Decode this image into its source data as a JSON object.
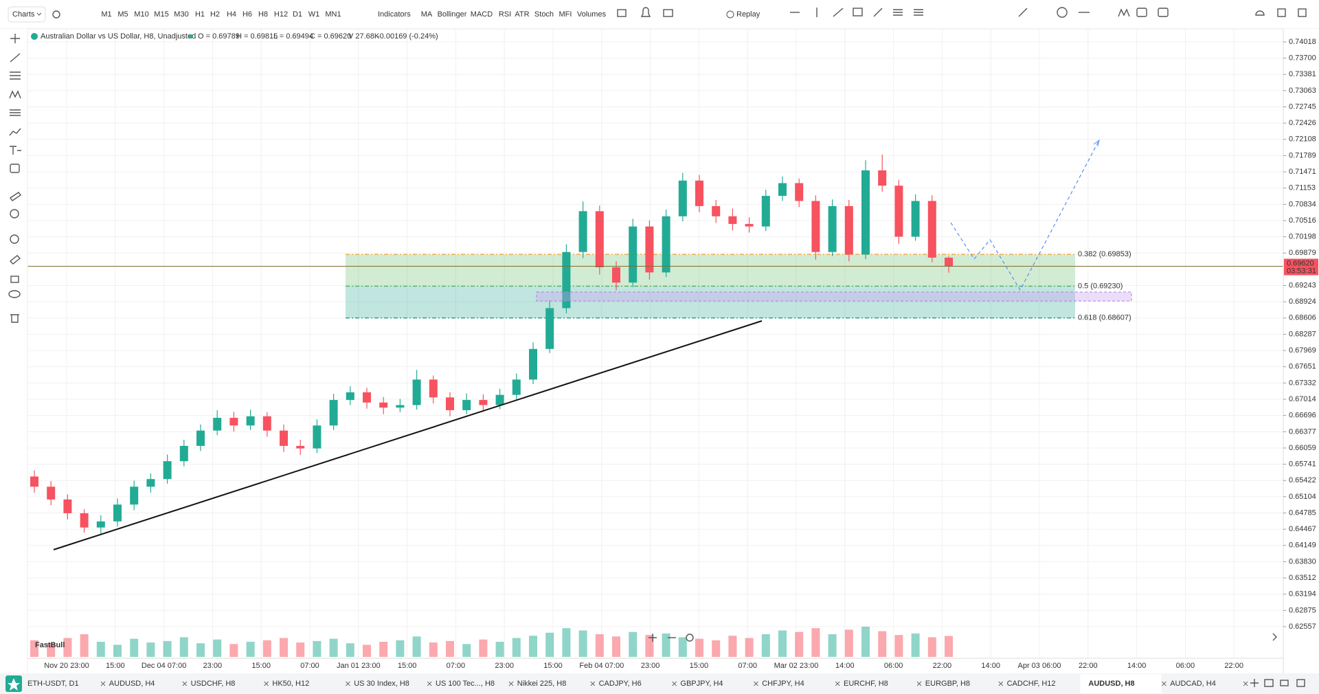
{
  "toolbar": {
    "charts": "Charts",
    "timeframes": [
      "M1",
      "M5",
      "M10",
      "M15",
      "M30",
      "H1",
      "H2",
      "H4",
      "H6",
      "H8",
      "H12",
      "D1",
      "W1",
      "MN1"
    ],
    "active_timeframe_index": 9,
    "indicators_button": "Indicators",
    "indicators": [
      "MA",
      "Bollinger",
      "MACD",
      "RSI",
      "ATR",
      "Stoch",
      "MFI",
      "Volumes"
    ],
    "replay": "Replay"
  },
  "chart_data": {
    "type": "candlestick",
    "title": "Australian Dollar vs US Dollar, H8, Unadjusted",
    "legend_fields": [
      "O = 0.69789",
      "H = 0.69815",
      "L = 0.69494",
      "C = 0.69620",
      "V 27.68K",
      "-0.00169 (-0.24%)"
    ],
    "time_labels": [
      "Nov 20 23:00",
      "15:00",
      "Dec 04 07:00",
      "23:00",
      "15:00",
      "07:00",
      "Jan 01 23:00",
      "15:00",
      "07:00",
      "23:00",
      "15:00",
      "Feb 04 07:00",
      "23:00",
      "15:00",
      "07:00",
      "Mar 02 23:00",
      "14:00",
      "06:00",
      "22:00",
      "14:00",
      "Apr 03 06:00",
      "22:00",
      "14:00",
      "06:00",
      "22:00"
    ],
    "open": [
      0.655,
      0.653,
      0.6505,
      0.6478,
      0.645,
      0.6462,
      0.6495,
      0.653,
      0.6545,
      0.658,
      0.661,
      0.664,
      0.6665,
      0.665,
      0.6668,
      0.664,
      0.661,
      0.6605,
      0.665,
      0.67,
      0.6715,
      0.6695,
      0.6685,
      0.669,
      0.674,
      0.6705,
      0.668,
      0.67,
      0.669,
      0.671,
      0.674,
      0.68,
      0.688,
      0.699,
      0.707,
      0.696,
      0.693,
      0.704,
      0.695,
      0.706,
      0.713,
      0.708,
      0.706,
      0.7045,
      0.704,
      0.71,
      0.7125,
      0.709,
      0.699,
      0.708,
      0.6985,
      0.715,
      0.712,
      0.702,
      0.709,
      0.69789
    ],
    "high": [
      0.6562,
      0.6541,
      0.6515,
      0.6486,
      0.6474,
      0.6507,
      0.6542,
      0.6556,
      0.6593,
      0.6622,
      0.6652,
      0.668,
      0.6677,
      0.6681,
      0.6676,
      0.6652,
      0.6622,
      0.6662,
      0.6712,
      0.6727,
      0.6724,
      0.6706,
      0.6702,
      0.6759,
      0.6748,
      0.6715,
      0.6713,
      0.6711,
      0.6722,
      0.6752,
      0.6813,
      0.6895,
      0.7005,
      0.7089,
      0.7081,
      0.6972,
      0.7055,
      0.7052,
      0.7073,
      0.7145,
      0.7141,
      0.7092,
      0.7075,
      0.7058,
      0.7112,
      0.7138,
      0.7134,
      0.7101,
      0.7093,
      0.7092,
      0.717,
      0.7181,
      0.7131,
      0.7103,
      0.7101,
      0.69815
    ],
    "low": [
      0.6518,
      0.6494,
      0.6466,
      0.644,
      0.6438,
      0.6452,
      0.6484,
      0.6518,
      0.6536,
      0.657,
      0.66,
      0.6631,
      0.6638,
      0.6641,
      0.6628,
      0.6598,
      0.6592,
      0.6596,
      0.6641,
      0.669,
      0.6683,
      0.6672,
      0.6676,
      0.6681,
      0.6693,
      0.6668,
      0.6672,
      0.6678,
      0.6682,
      0.6701,
      0.6731,
      0.6792,
      0.687,
      0.6978,
      0.6946,
      0.6915,
      0.6921,
      0.6936,
      0.6941,
      0.705,
      0.7068,
      0.7047,
      0.7032,
      0.7028,
      0.7031,
      0.709,
      0.7078,
      0.6975,
      0.6982,
      0.6972,
      0.6976,
      0.7108,
      0.7006,
      0.7012,
      0.697,
      0.69494
    ],
    "close": [
      0.653,
      0.6505,
      0.6478,
      0.645,
      0.6462,
      0.6495,
      0.653,
      0.6545,
      0.658,
      0.661,
      0.664,
      0.6665,
      0.665,
      0.6668,
      0.664,
      0.661,
      0.6605,
      0.665,
      0.67,
      0.6715,
      0.6695,
      0.6685,
      0.669,
      0.674,
      0.6705,
      0.668,
      0.67,
      0.669,
      0.671,
      0.674,
      0.68,
      0.688,
      0.699,
      0.707,
      0.696,
      0.693,
      0.704,
      0.695,
      0.706,
      0.713,
      0.708,
      0.706,
      0.7045,
      0.704,
      0.71,
      0.7125,
      0.709,
      0.699,
      0.708,
      0.6985,
      0.715,
      0.712,
      0.702,
      0.709,
      0.6979,
      0.6962
    ],
    "volume": [
      22,
      18,
      25,
      30,
      20,
      16,
      24,
      19,
      21,
      26,
      18,
      23,
      17,
      20,
      22,
      25,
      19,
      21,
      24,
      18,
      16,
      20,
      22,
      27,
      19,
      21,
      17,
      23,
      20,
      25,
      28,
      32,
      38,
      35,
      30,
      27,
      33,
      29,
      31,
      26,
      24,
      22,
      28,
      25,
      30,
      35,
      33,
      38,
      30,
      36,
      40,
      34,
      29,
      31,
      26,
      27.68
    ],
    "up_color": "#22ab94",
    "down_color": "#f7525f",
    "ylim": [
      0.61924,
      0.7426
    ],
    "yticks": [
      0.74018,
      {
        "value": 0.737,
        "label": "0.73700"
      },
      0.73381,
      0.73063,
      0.72745,
      0.72426,
      0.72108,
      0.71789,
      0.71471,
      0.71153,
      0.70834,
      0.70516,
      0.70198,
      0.69879,
      0.69243,
      0.68924,
      0.68606,
      0.68287,
      0.67969,
      0.67651,
      0.67332,
      0.67014,
      0.66696,
      0.66377,
      0.66059,
      0.65741,
      0.65422,
      0.65104,
      0.64785,
      0.64467,
      0.64149,
      {
        "value": 0.6383,
        "label": "0.63830"
      },
      0.63512,
      0.63194,
      0.62875,
      0.62557
    ],
    "grid": true,
    "last_price": {
      "value": 0.6962,
      "label": "0.69620"
    },
    "countdown": "03:53:31",
    "fib_levels": [
      {
        "value": 0.69853,
        "label": "0.382 (0.69853)",
        "color": "#f0a030"
      },
      {
        "value": 0.6923,
        "label": "0.5 (0.69230)",
        "color": "#4caf50"
      },
      {
        "value": 0.68607,
        "label": "0.618 (0.68607)",
        "color": "#089981"
      }
    ],
    "watermark": "FastBull"
  },
  "tabs": {
    "items": [
      "ETH-USDT, D1",
      "AUDUSD, H4",
      "USDCHF, H8",
      "HK50, H12",
      "US 30 Index, H8",
      "US 100 Tec..., H8",
      "Nikkei 225, H8",
      "CADJPY, H6",
      "GBPJPY, H4",
      "CHFJPY, H4",
      "EURCHF, H8",
      "EURGBP, H8",
      "CADCHF, H12",
      "AUDUSD, H8",
      "AUDCAD, H4"
    ],
    "active_index": 13
  }
}
